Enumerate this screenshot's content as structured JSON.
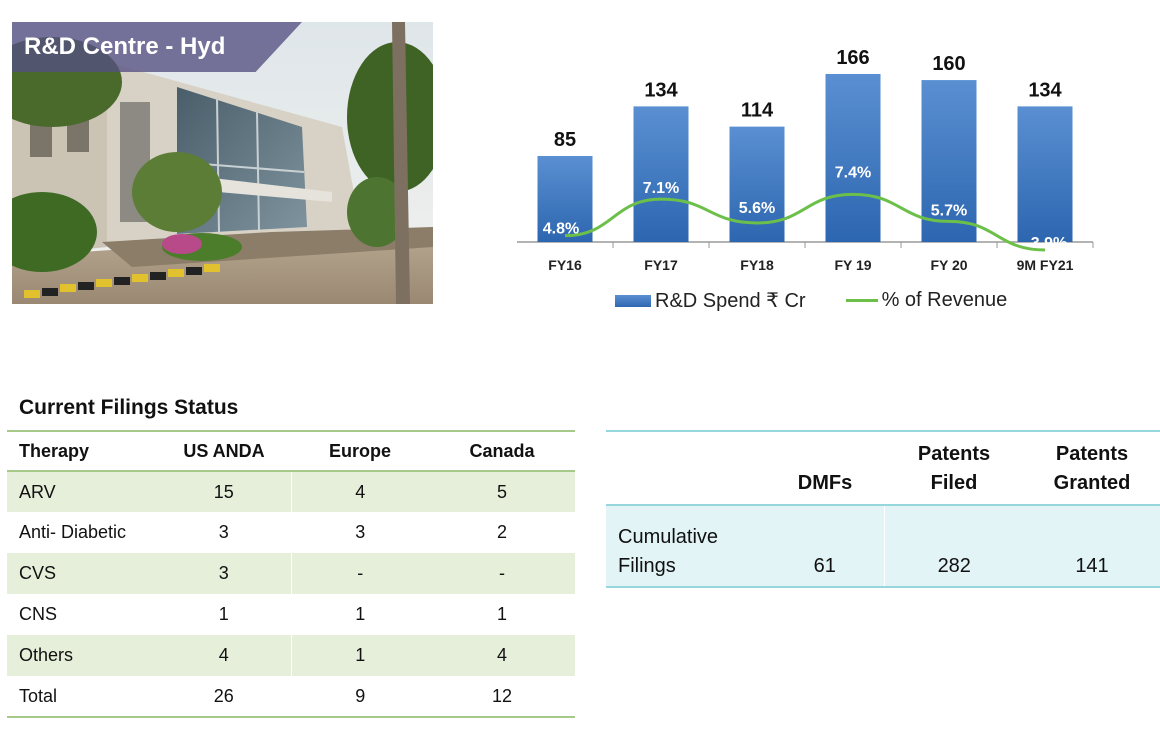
{
  "photo": {
    "caption": "R&D Centre - Hyd"
  },
  "chart_data": {
    "type": "bar",
    "categories": [
      "FY16",
      "FY17",
      "FY18",
      "FY 19",
      "FY 20",
      "9M FY21"
    ],
    "series": [
      {
        "name": "R&D Spend ₹ Cr",
        "type": "bar",
        "values": [
          85,
          134,
          114,
          166,
          160,
          134
        ],
        "labels": [
          "85",
          "134",
          "114",
          "166",
          "160",
          "134"
        ],
        "color": "#3a74c2"
      },
      {
        "name": "% of Revenue",
        "type": "line",
        "values": [
          4.8,
          7.1,
          5.6,
          7.4,
          5.7,
          3.9
        ],
        "labels": [
          "4.8%",
          "7.1%",
          "5.6%",
          "7.4%",
          "5.7%",
          "3.9%"
        ],
        "color": "#6cc04a"
      }
    ],
    "legend": "bottom"
  },
  "filings": {
    "title": "Current Filings Status",
    "headers": [
      "Therapy",
      "US ANDA",
      "Europe",
      "Canada"
    ],
    "rows": [
      [
        "ARV",
        "15",
        "4",
        "5"
      ],
      [
        "Anti- Diabetic",
        "3",
        "3",
        "2"
      ],
      [
        "CVS",
        "3",
        "-",
        "-"
      ],
      [
        "CNS",
        "1",
        "1",
        "1"
      ],
      [
        "Others",
        "4",
        "1",
        "4"
      ],
      [
        "Total",
        "26",
        "9",
        "12"
      ]
    ]
  },
  "cumulative": {
    "headers": [
      "",
      "DMFs",
      "Patents Filed",
      "Patents Granted"
    ],
    "header_lines": [
      [
        ""
      ],
      [
        "DMFs"
      ],
      [
        "Patents",
        "Filed"
      ],
      [
        "Patents",
        "Granted"
      ]
    ],
    "row_label_lines": [
      "Cumulative",
      "Filings"
    ],
    "values": [
      "61",
      "282",
      "141"
    ]
  }
}
